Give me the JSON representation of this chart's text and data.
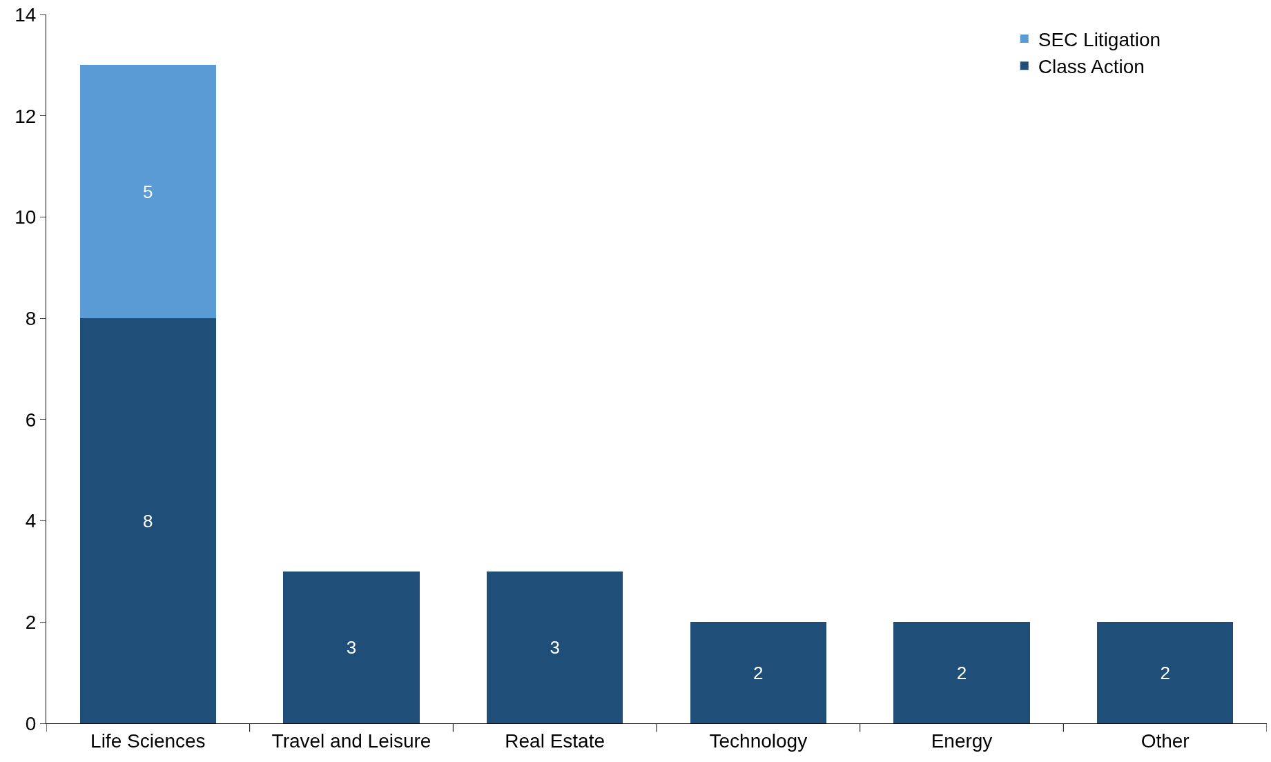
{
  "chart_data": {
    "type": "bar",
    "stacked": true,
    "categories": [
      "Life Sciences",
      "Travel and Leisure",
      "Real Estate",
      "Technology",
      "Energy",
      "Other"
    ],
    "series": [
      {
        "name": "Class Action",
        "color": "#1f4e79",
        "values": [
          8,
          3,
          3,
          2,
          2,
          2
        ]
      },
      {
        "name": "SEC Litigation",
        "color": "#5b9bd5",
        "values": [
          5,
          null,
          null,
          null,
          null,
          null
        ]
      }
    ],
    "ylim": [
      0,
      14
    ],
    "yticks": [
      0,
      2,
      4,
      6,
      8,
      10,
      12,
      14
    ],
    "data_labels": true,
    "legend": "top right"
  }
}
